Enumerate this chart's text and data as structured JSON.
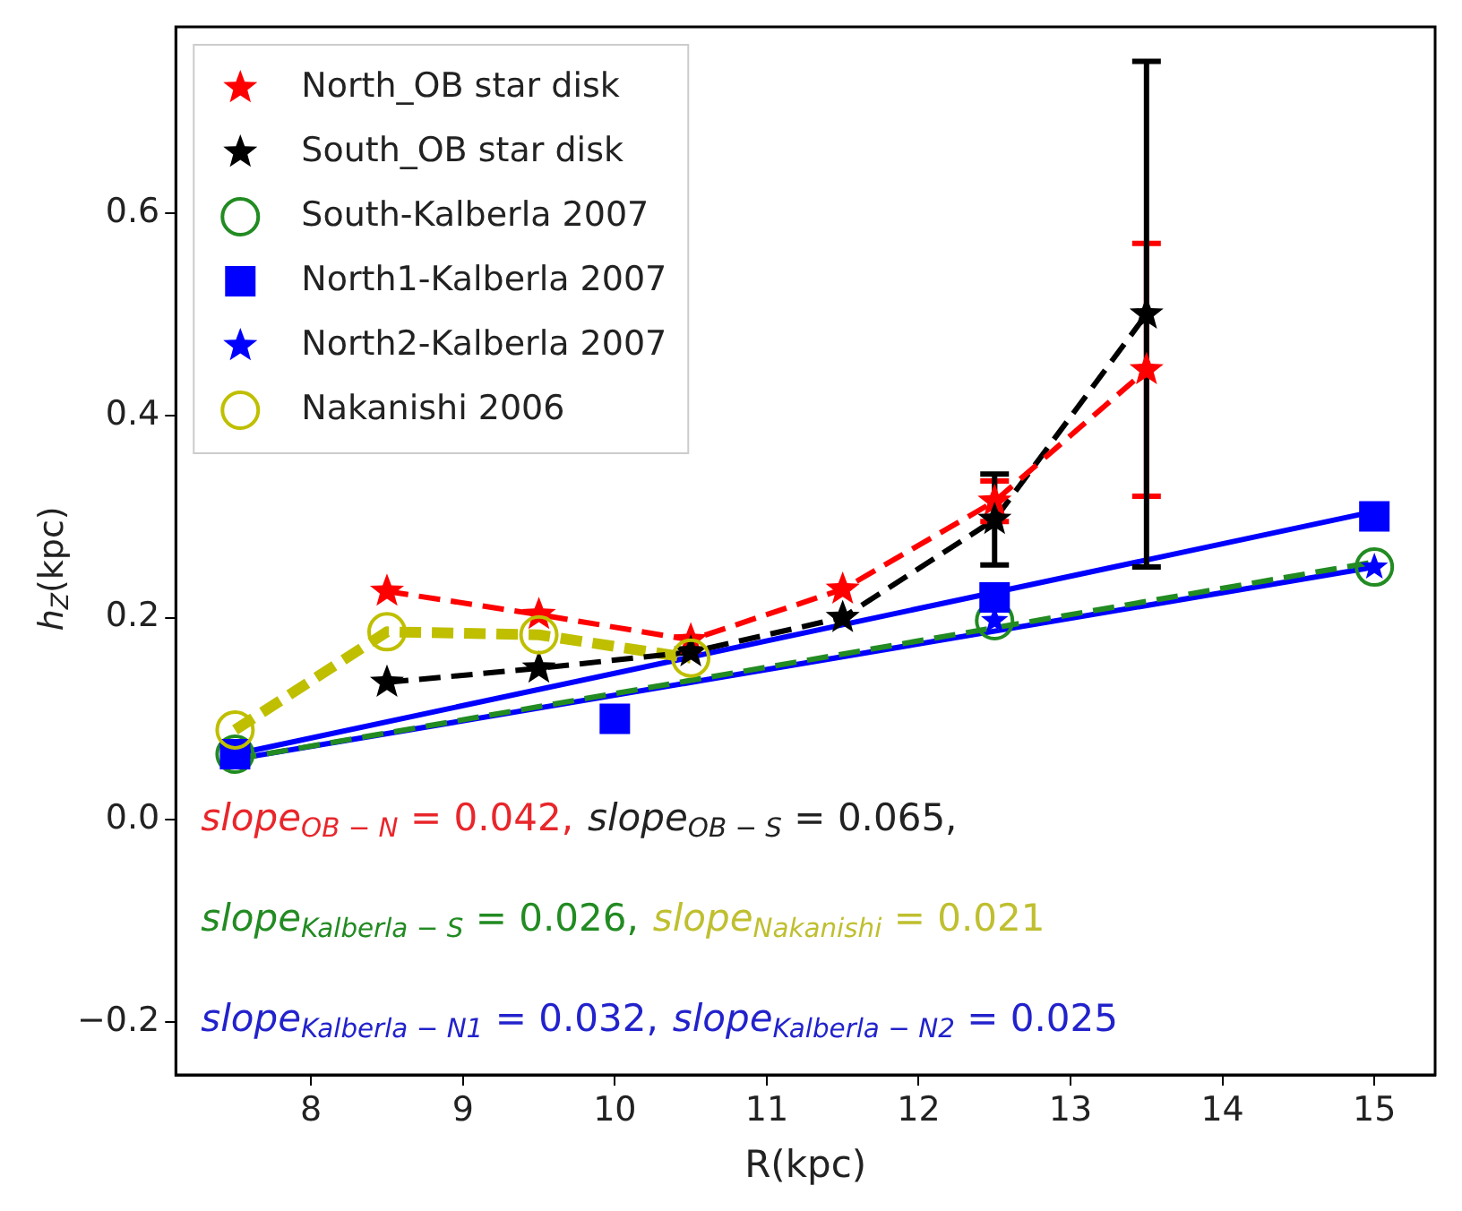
{
  "chart_data": {
    "type": "line",
    "xlabel": "R(kpc)",
    "ylabel": "h$_{Z}$(kpc)",
    "xlim": [
      7.11,
      15.4
    ],
    "xticks": [
      8,
      9,
      10,
      11,
      12,
      13,
      14,
      15
    ],
    "ylim": [
      -0.252,
      0.784
    ],
    "yticks": [
      {
        "value": -0.2,
        "label": "−0.2"
      },
      {
        "value": 0,
        "label": "0.0"
      },
      {
        "value": 0.2,
        "label": "0.2"
      },
      {
        "value": 0.4,
        "label": "0.4"
      },
      {
        "value": 0.6,
        "label": "0.6"
      }
    ],
    "grid": false,
    "legend": "top left",
    "series": [
      {
        "name": "North_OB star disk",
        "color": "#ff0000",
        "marker": "star",
        "line_style": "dashed",
        "x": [
          8.5,
          9.5,
          10.5,
          11.5,
          12.5,
          13.5
        ],
        "values": [
          0.226,
          0.203,
          0.178,
          0.228,
          0.315,
          0.445
        ],
        "errors": [
          null,
          null,
          null,
          null,
          0.02,
          0.125
        ]
      },
      {
        "name": "South_OB star disk",
        "color": "#000000",
        "marker": "star",
        "line_style": "dashed",
        "x": [
          8.5,
          9.5,
          10.5,
          11.5,
          12.5,
          13.5
        ],
        "values": [
          0.136,
          0.15,
          0.166,
          0.2,
          0.297,
          0.5
        ],
        "errors": [
          null,
          null,
          null,
          null,
          0.045,
          0.25
        ]
      },
      {
        "name": "South-Kalberla 2007",
        "type": "scatter",
        "color": "#228b22",
        "marker": "circle",
        "x": [
          7.5,
          12.5,
          15
        ],
        "values": [
          0.065,
          0.197,
          0.25
        ]
      },
      {
        "name": "North1-Kalberla 2007",
        "type": "scatter",
        "color": "#0000ff",
        "marker": "square",
        "x": [
          7.5,
          10,
          12.5,
          15
        ],
        "values": [
          0.065,
          0.1,
          0.22,
          0.3
        ]
      },
      {
        "name": "North2-Kalberla 2007",
        "type": "scatter",
        "color": "#0000ff",
        "marker": "star",
        "x": [
          12.5,
          15
        ],
        "values": [
          0.197,
          0.25
        ]
      },
      {
        "name": "Nakanishi 2006",
        "color": "#bfbf00",
        "marker": "circle",
        "line_style": "dashed",
        "x": [
          7.5,
          8.5,
          9.5,
          10.5
        ],
        "values": [
          0.089,
          0.186,
          0.183,
          0.16
        ]
      },
      {
        "color": "#228b22",
        "marker": "none",
        "line_style": "dashed",
        "x": [
          7.5,
          15
        ],
        "values": [
          0.06,
          0.255
        ]
      },
      {
        "color": "#0000ff",
        "marker": "none",
        "line_style": "solid",
        "x": [
          7.5,
          15
        ],
        "values": [
          0.065,
          0.305
        ]
      },
      {
        "color": "#0000ff",
        "marker": "none",
        "line_style": "solid",
        "x": [
          7.5,
          15
        ],
        "values": [
          0.06,
          0.25
        ]
      }
    ],
    "annotations": [
      "slope$_{OB − N}$ = 0.042,",
      "slope$_{OB − S}$ = 0.065,",
      "slope$_{Kalberla − S}$ = 0.026,",
      "slope$_{Nakanishi}$ = 0.021",
      "slope$_{Kalberla − N1}$ = 0.032,",
      "slope$_{Kalberla − N2}$ = 0.025"
    ]
  }
}
